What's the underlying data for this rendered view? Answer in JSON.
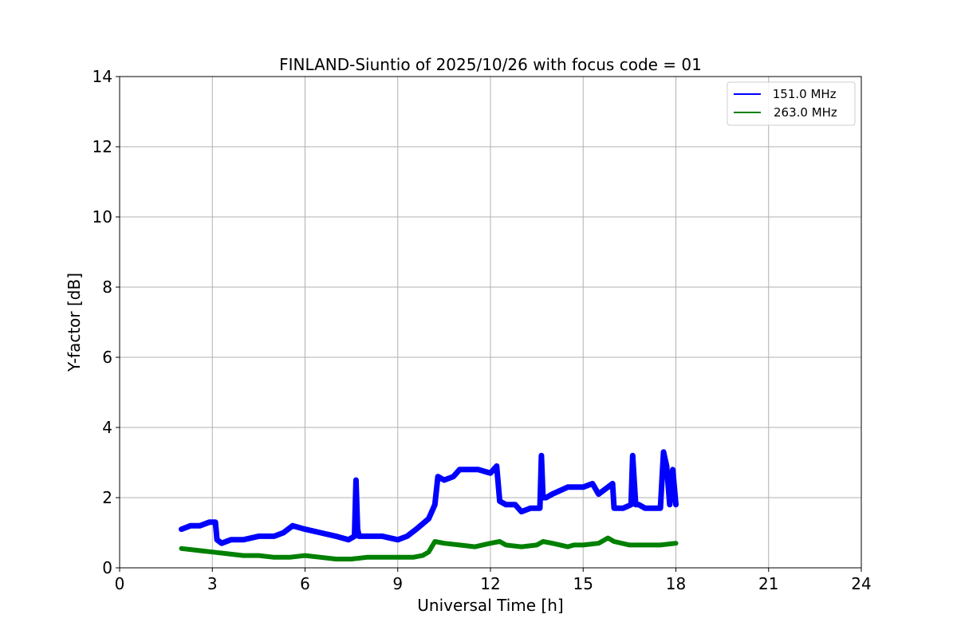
{
  "chart_data": {
    "type": "line",
    "title": "FINLAND-Siuntio of 2025/10/26 with focus code = 01",
    "xlabel": "Universal Time [h]",
    "ylabel": "Y-factor [dB]",
    "xlim": [
      0,
      24
    ],
    "ylim": [
      0,
      14
    ],
    "xticks": [
      0,
      3,
      6,
      9,
      12,
      15,
      18,
      21,
      24
    ],
    "yticks": [
      0,
      2,
      4,
      6,
      8,
      10,
      12,
      14
    ],
    "grid": true,
    "legend": "top-right",
    "series": [
      {
        "name": " 151.0 MHz",
        "color": "#0000ff",
        "x": [
          2.0,
          2.3,
          2.6,
          2.9,
          3.1,
          3.15,
          3.3,
          3.6,
          4.0,
          4.5,
          5.0,
          5.3,
          5.6,
          6.0,
          6.5,
          7.0,
          7.4,
          7.6,
          7.65,
          7.7,
          7.75,
          8.0,
          8.5,
          9.0,
          9.3,
          9.6,
          10.0,
          10.2,
          10.3,
          10.5,
          10.8,
          11.0,
          11.3,
          11.6,
          12.0,
          12.2,
          12.3,
          12.5,
          12.8,
          13.0,
          13.3,
          13.6,
          13.65,
          13.7,
          13.8,
          14.0,
          14.5,
          15.0,
          15.3,
          15.5,
          15.8,
          15.95,
          16.0,
          16.3,
          16.55,
          16.6,
          16.7,
          16.8,
          17.0,
          17.3,
          17.5,
          17.6,
          17.7,
          17.8,
          17.9,
          18.0
        ],
        "y": [
          1.1,
          1.2,
          1.2,
          1.3,
          1.3,
          0.8,
          0.7,
          0.8,
          0.8,
          0.9,
          0.9,
          1.0,
          1.2,
          1.1,
          1.0,
          0.9,
          0.8,
          0.9,
          2.5,
          1.1,
          0.9,
          0.9,
          0.9,
          0.8,
          0.9,
          1.1,
          1.4,
          1.8,
          2.6,
          2.5,
          2.6,
          2.8,
          2.8,
          2.8,
          2.7,
          2.9,
          1.9,
          1.8,
          1.8,
          1.6,
          1.7,
          1.7,
          3.2,
          2.0,
          2.0,
          2.1,
          2.3,
          2.3,
          2.4,
          2.1,
          2.3,
          2.4,
          1.7,
          1.7,
          1.8,
          3.2,
          1.8,
          1.8,
          1.7,
          1.7,
          1.7,
          3.3,
          2.9,
          1.8,
          2.8,
          1.8
        ]
      },
      {
        "name": "263.0 MHz",
        "color": "#008000",
        "x": [
          2.0,
          2.5,
          3.0,
          3.5,
          4.0,
          4.5,
          5.0,
          5.5,
          6.0,
          6.5,
          7.0,
          7.5,
          8.0,
          8.5,
          9.0,
          9.5,
          9.8,
          10.0,
          10.2,
          10.5,
          11.0,
          11.5,
          12.0,
          12.3,
          12.5,
          13.0,
          13.5,
          13.7,
          14.0,
          14.5,
          14.7,
          15.0,
          15.5,
          15.8,
          16.0,
          16.5,
          17.0,
          17.5,
          18.0
        ],
        "y": [
          0.55,
          0.5,
          0.45,
          0.4,
          0.35,
          0.35,
          0.3,
          0.3,
          0.35,
          0.3,
          0.25,
          0.25,
          0.3,
          0.3,
          0.3,
          0.3,
          0.35,
          0.45,
          0.75,
          0.7,
          0.65,
          0.6,
          0.7,
          0.75,
          0.65,
          0.6,
          0.65,
          0.75,
          0.7,
          0.6,
          0.65,
          0.65,
          0.7,
          0.85,
          0.75,
          0.65,
          0.65,
          0.65,
          0.7
        ]
      }
    ]
  }
}
